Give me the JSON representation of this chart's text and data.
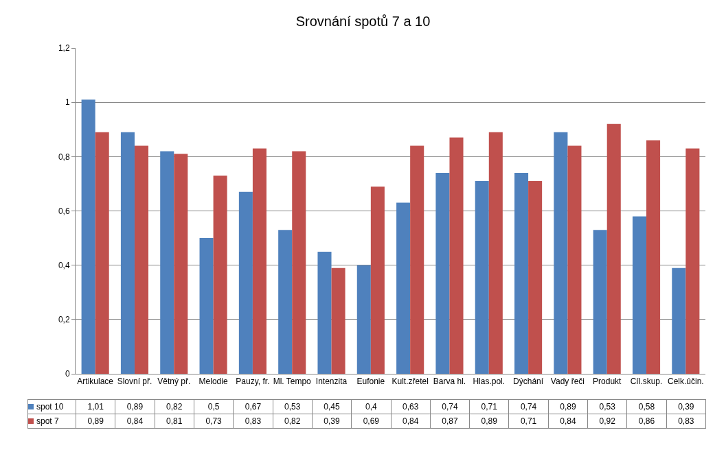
{
  "chart_data": {
    "type": "bar",
    "title": "Srovnání spotů 7 a 10",
    "categories": [
      "Artikulace",
      "Slovní př.",
      "Větný př.",
      "Melodie",
      "Pauzy, fr.",
      "Ml. Tempo",
      "Intenzita",
      "Eufonie",
      "Kult.zřetel",
      "Barva hl.",
      "Hlas.pol.",
      "Dýchání",
      "Vady řeči",
      "Produkt",
      "Cíl.skup.",
      "Celk.účin."
    ],
    "series": [
      {
        "name": "spot 10",
        "color": "#4f81bd",
        "values": [
          1.01,
          0.89,
          0.82,
          0.5,
          0.67,
          0.53,
          0.45,
          0.4,
          0.63,
          0.74,
          0.71,
          0.74,
          0.89,
          0.53,
          0.58,
          0.39
        ],
        "value_labels": [
          "1,01",
          "0,89",
          "0,82",
          "0,5",
          "0,67",
          "0,53",
          "0,45",
          "0,4",
          "0,63",
          "0,74",
          "0,71",
          "0,74",
          "0,89",
          "0,53",
          "0,58",
          "0,39"
        ]
      },
      {
        "name": "spot 7",
        "color": "#c0504d",
        "values": [
          0.89,
          0.84,
          0.81,
          0.73,
          0.83,
          0.82,
          0.39,
          0.69,
          0.84,
          0.87,
          0.89,
          0.71,
          0.84,
          0.92,
          0.86,
          0.83
        ],
        "value_labels": [
          "0,89",
          "0,84",
          "0,81",
          "0,73",
          "0,83",
          "0,82",
          "0,39",
          "0,69",
          "0,84",
          "0,87",
          "0,89",
          "0,71",
          "0,84",
          "0,92",
          "0,86",
          "0,83"
        ]
      }
    ],
    "ylim": [
      0,
      1.2
    ],
    "yticks": [
      0,
      {
        "value": 0.2,
        "label": "0,2"
      },
      {
        "value": 0.4,
        "label": "0,4"
      },
      {
        "value": 0.6,
        "label": "0,6"
      },
      {
        "value": 0.8,
        "label": "0,8"
      },
      1,
      {
        "value": 1.2,
        "label": "1,2"
      }
    ],
    "grid": "y",
    "legend": "bottom left"
  }
}
